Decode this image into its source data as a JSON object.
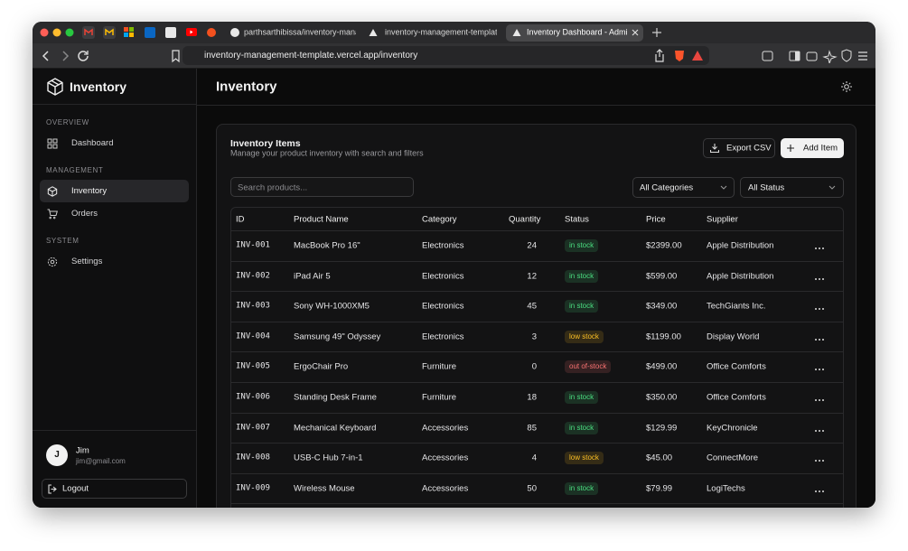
{
  "browser": {
    "tabs": [
      "parthsarthibissa/inventory-manage",
      "inventory-management-template ·",
      "Inventory Dashboard - Admin I"
    ],
    "url": "inventory-management-template.vercel.app/inventory"
  },
  "sidebar": {
    "brand": "Inventory",
    "sections": [
      {
        "heading": "OVERVIEW",
        "items": [
          "Dashboard"
        ]
      },
      {
        "heading": "MANAGEMENT",
        "items": [
          "Inventory",
          "Orders"
        ]
      },
      {
        "heading": "SYSTEM",
        "items": [
          "Settings"
        ]
      }
    ],
    "user": {
      "initial": "J",
      "name": "Jim",
      "email": "jim@gmail.com"
    },
    "logout": "Logout"
  },
  "header": {
    "title": "Inventory"
  },
  "card": {
    "title": "Inventory Items",
    "subtitle": "Manage your product inventory with search and filters",
    "buttons": [
      "Export CSV",
      "Add Item"
    ],
    "search_placeholder": "Search products...",
    "filters": [
      "All Categories",
      "All Status"
    ]
  },
  "table": {
    "columns": [
      "ID",
      "Product Name",
      "Category",
      "Quantity",
      "Status",
      "Price",
      "Supplier"
    ],
    "rows": [
      [
        "INV-001",
        "MacBook Pro 16\"",
        "Electronics",
        24,
        "in stock",
        "$2399.00",
        "Apple Distribution"
      ],
      [
        "INV-002",
        "iPad Air 5",
        "Electronics",
        12,
        "in stock",
        "$599.00",
        "Apple Distribution"
      ],
      [
        "INV-003",
        "Sony WH-1000XM5",
        "Electronics",
        45,
        "in stock",
        "$349.00",
        "TechGiants Inc."
      ],
      [
        "INV-004",
        "Samsung 49\" Odyssey",
        "Electronics",
        3,
        "low stock",
        "$1199.00",
        "Display World"
      ],
      [
        "INV-005",
        "ErgoChair Pro",
        "Furniture",
        0,
        "out of-stock",
        "$499.00",
        "Office Comforts"
      ],
      [
        "INV-006",
        "Standing Desk Frame",
        "Furniture",
        18,
        "in stock",
        "$350.00",
        "Office Comforts"
      ],
      [
        "INV-007",
        "Mechanical Keyboard",
        "Accessories",
        85,
        "in stock",
        "$129.99",
        "KeyChronicle"
      ],
      [
        "INV-008",
        "USB-C Hub 7-in-1",
        "Accessories",
        4,
        "low stock",
        "$45.00",
        "ConnectMore"
      ],
      [
        "INV-009",
        "Wireless Mouse",
        "Accessories",
        50,
        "in stock",
        "$79.99",
        "LogiTechs"
      ]
    ],
    "status_colors": [
      "#4ade80",
      "#4ade80",
      "#4ade80",
      "#fbbf24",
      "#f87171",
      "#4ade80",
      "#4ade80",
      "#fbbf24",
      "#4ade80"
    ]
  }
}
